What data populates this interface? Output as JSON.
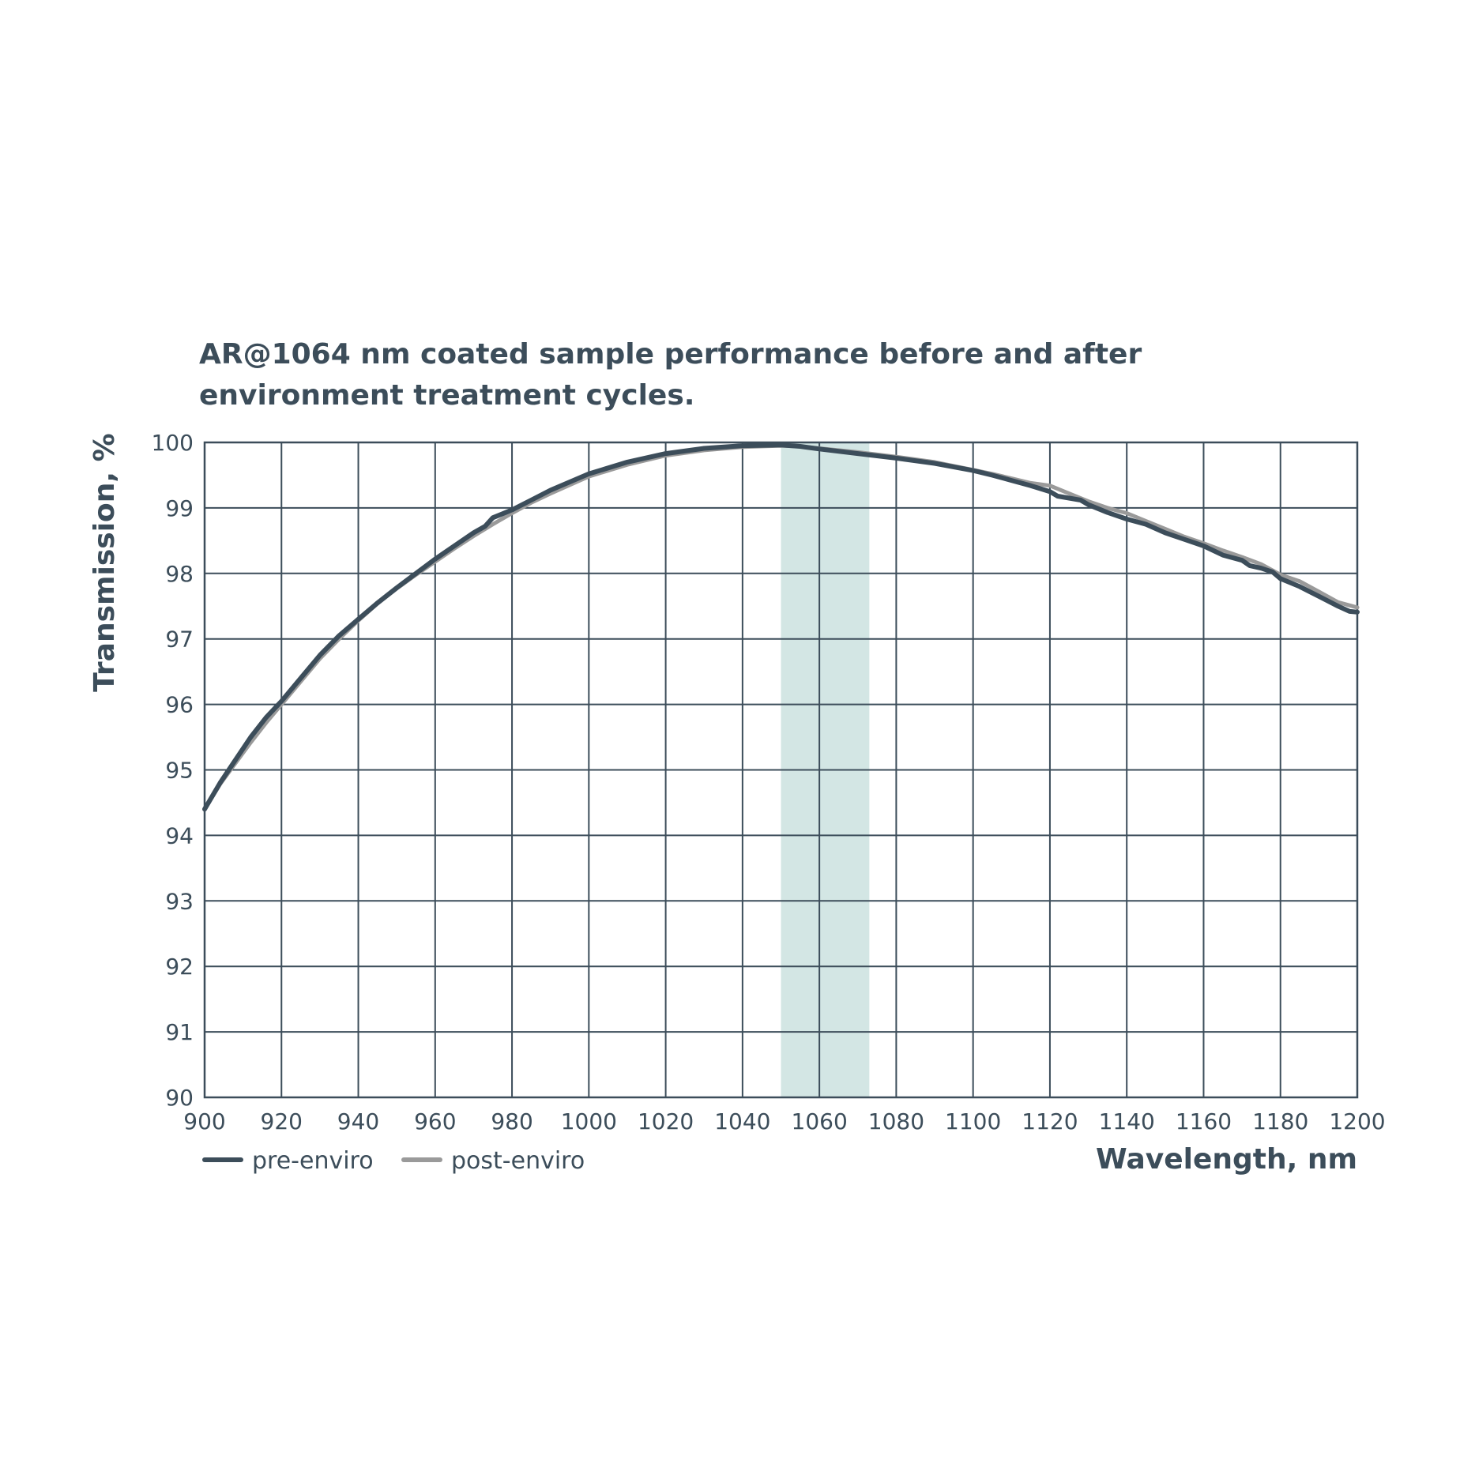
{
  "chart_data": {
    "type": "line",
    "title_lines": [
      "AR@1064 nm coated sample performance before and after",
      "environment treatment cycles."
    ],
    "xlabel": "Wavelength, nm",
    "ylabel": "Transmission, %",
    "xlim": [
      900,
      1200
    ],
    "ylim": [
      90,
      100
    ],
    "x_ticks": [
      900,
      920,
      940,
      960,
      980,
      1000,
      1020,
      1040,
      1060,
      1080,
      1100,
      1120,
      1140,
      1160,
      1180,
      1200
    ],
    "y_ticks": [
      90,
      91,
      92,
      93,
      94,
      95,
      96,
      97,
      98,
      99,
      100
    ],
    "grid": true,
    "highlight_band": {
      "x_range": [
        1050,
        1073
      ],
      "color": "#d3e6e4"
    },
    "colors": {
      "text": "#3c4d5a",
      "grid": "#3c4d5a",
      "pre": "#3c4d5a",
      "post": "#9a9a9a"
    },
    "legend_position": "bottom-left",
    "series": [
      {
        "name": "pre-enviro",
        "color": "#3c4d5a",
        "x": [
          900,
          904,
          908,
          912,
          916,
          920,
          925,
          930,
          935,
          940,
          945,
          950,
          955,
          960,
          965,
          970,
          973,
          975,
          980,
          985,
          990,
          1000,
          1010,
          1020,
          1030,
          1040,
          1050,
          1055,
          1060,
          1070,
          1080,
          1090,
          1100,
          1105,
          1110,
          1115,
          1120,
          1122,
          1125,
          1128,
          1130,
          1135,
          1140,
          1145,
          1150,
          1155,
          1160,
          1165,
          1170,
          1172,
          1175,
          1178,
          1180,
          1185,
          1190,
          1195,
          1198,
          1200
        ],
        "y": [
          94.4,
          94.8,
          95.15,
          95.5,
          95.8,
          96.05,
          96.4,
          96.75,
          97.05,
          97.3,
          97.55,
          97.78,
          98.0,
          98.22,
          98.42,
          98.62,
          98.72,
          98.85,
          98.97,
          99.12,
          99.27,
          99.52,
          99.7,
          99.83,
          99.91,
          99.95,
          99.96,
          99.94,
          99.9,
          99.83,
          99.76,
          99.68,
          99.57,
          99.5,
          99.42,
          99.34,
          99.25,
          99.18,
          99.15,
          99.12,
          99.05,
          98.93,
          98.83,
          98.75,
          98.62,
          98.52,
          98.42,
          98.28,
          98.2,
          98.12,
          98.08,
          98.02,
          97.92,
          97.8,
          97.65,
          97.5,
          97.42,
          97.41
        ]
      },
      {
        "name": "post-enviro",
        "color": "#9a9a9a",
        "x": [
          900,
          904,
          908,
          912,
          916,
          920,
          925,
          930,
          935,
          940,
          945,
          950,
          955,
          960,
          965,
          970,
          975,
          980,
          985,
          990,
          1000,
          1010,
          1020,
          1030,
          1040,
          1050,
          1055,
          1060,
          1070,
          1080,
          1090,
          1100,
          1105,
          1110,
          1115,
          1120,
          1125,
          1130,
          1135,
          1140,
          1145,
          1150,
          1155,
          1160,
          1165,
          1170,
          1175,
          1180,
          1185,
          1190,
          1195,
          1200
        ],
        "y": [
          94.4,
          94.78,
          95.1,
          95.42,
          95.72,
          96.0,
          96.35,
          96.7,
          97.0,
          97.28,
          97.54,
          97.77,
          97.98,
          98.18,
          98.38,
          98.57,
          98.75,
          98.92,
          99.08,
          99.22,
          99.48,
          99.66,
          99.8,
          99.88,
          99.93,
          99.95,
          99.94,
          99.91,
          99.85,
          99.78,
          99.7,
          99.58,
          99.52,
          99.45,
          99.38,
          99.34,
          99.22,
          99.1,
          99.0,
          98.92,
          98.8,
          98.68,
          98.56,
          98.46,
          98.35,
          98.25,
          98.14,
          97.98,
          97.88,
          97.72,
          97.56,
          97.48
        ]
      }
    ]
  }
}
